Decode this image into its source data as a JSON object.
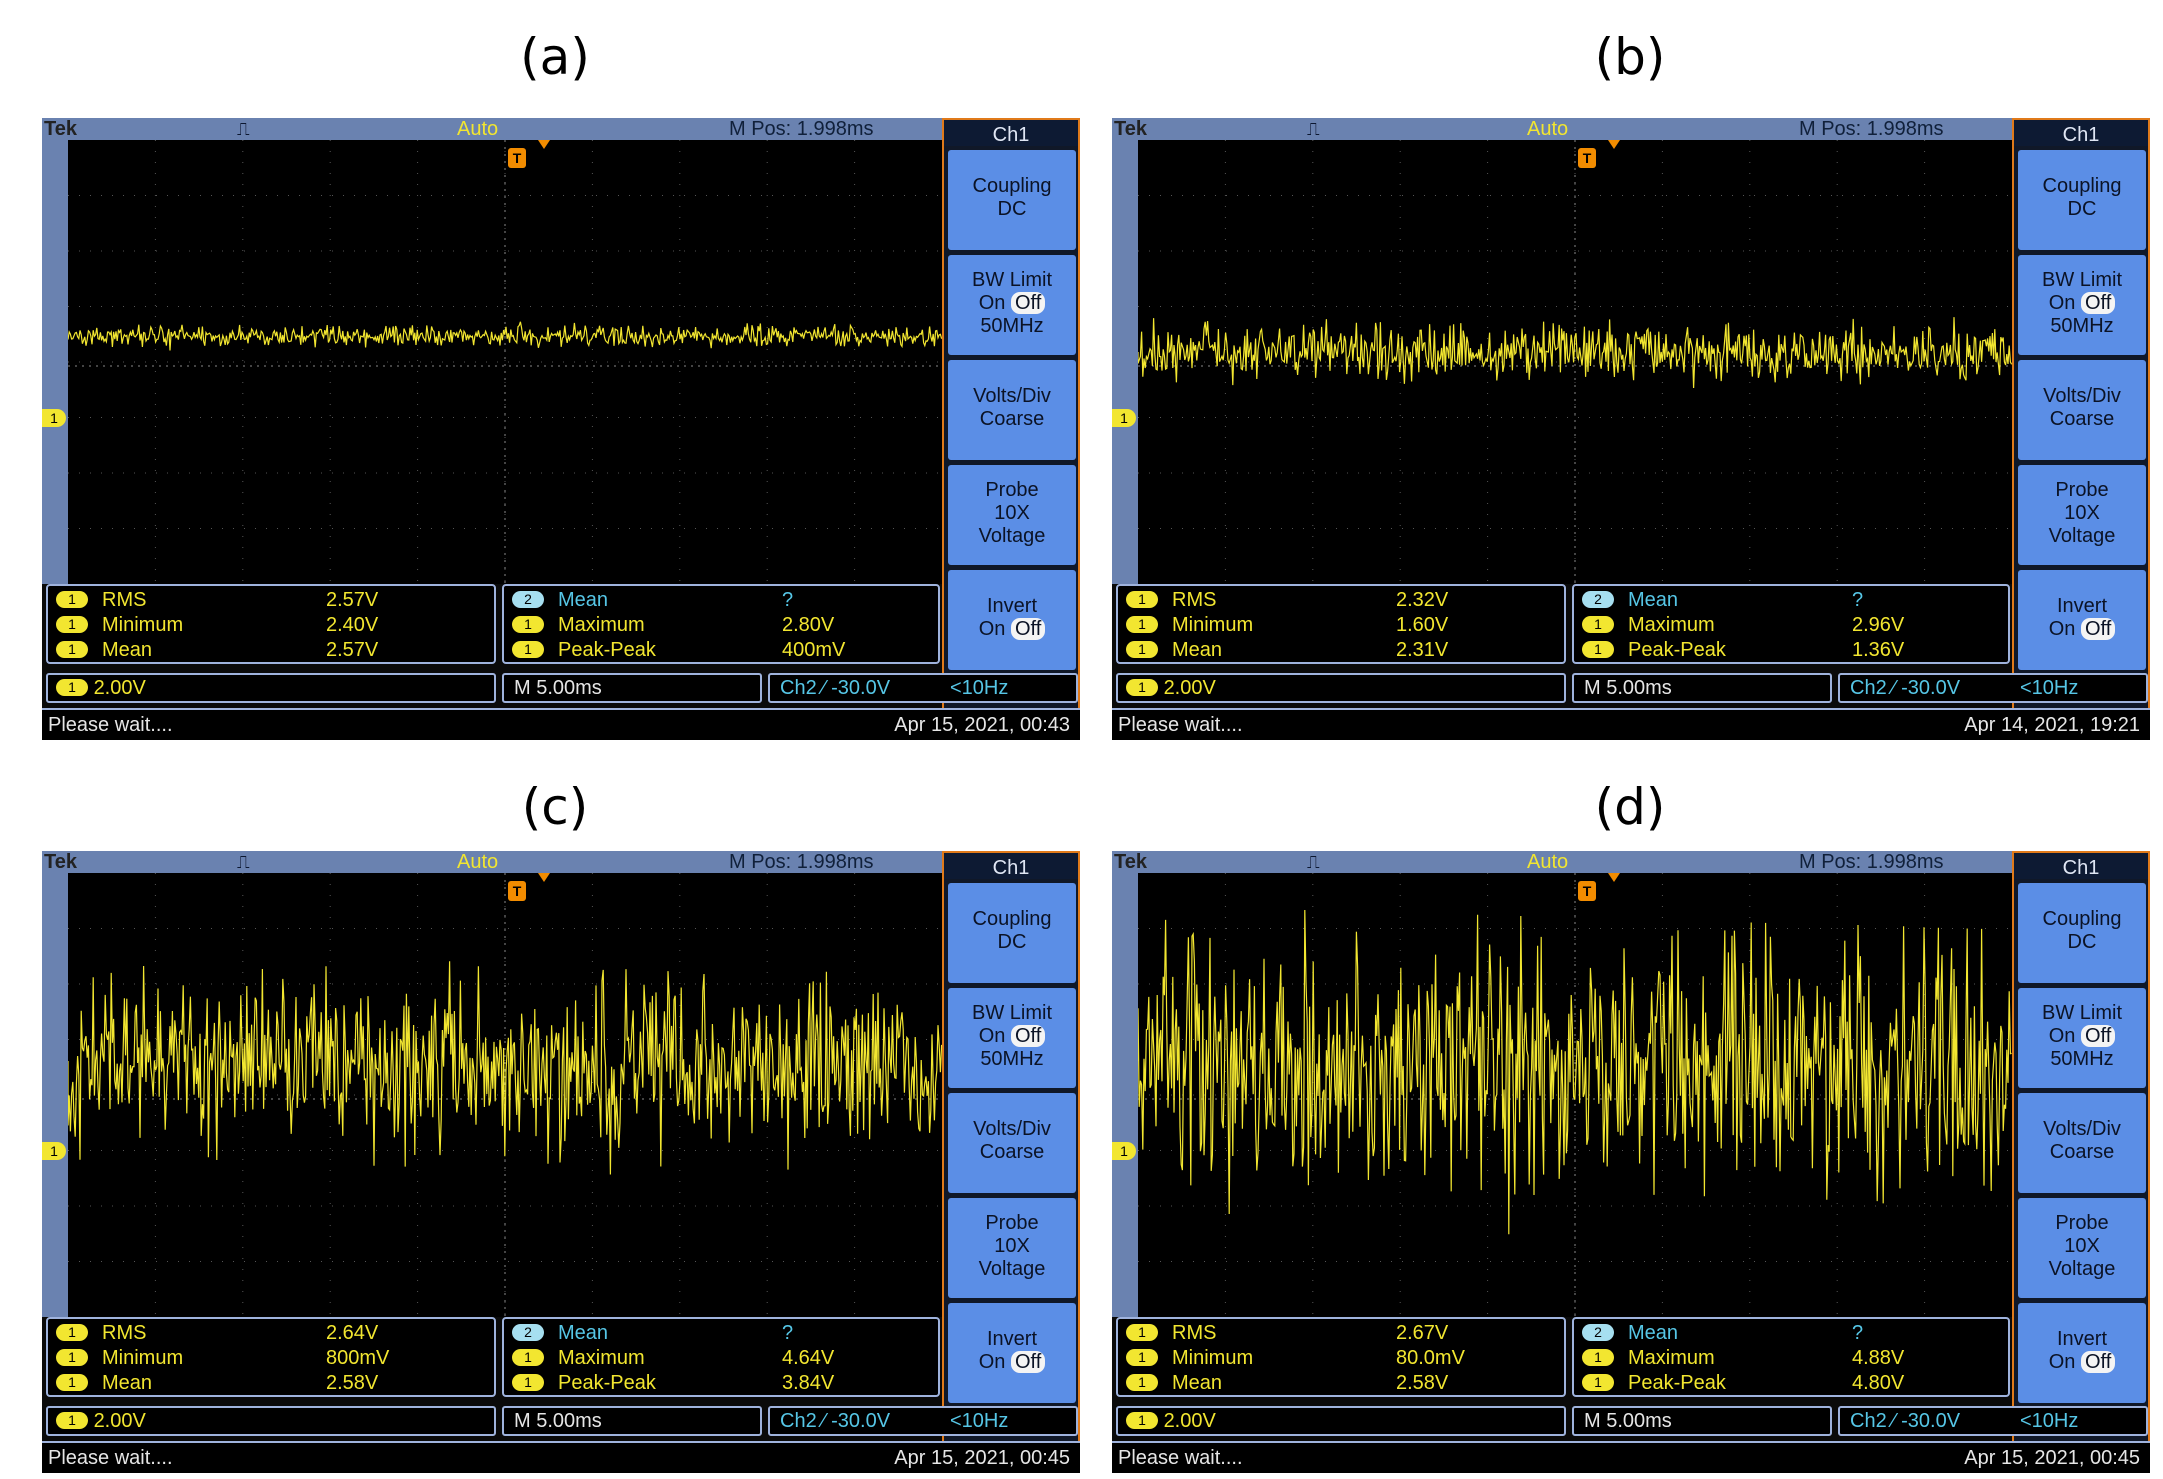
{
  "common": {
    "brand": "Tek",
    "acquire_glyph": "⎍",
    "trigger_mode": "Auto",
    "m_pos": "M Pos: 1.998ms",
    "trigger_marker": "T",
    "channel_marker": "1",
    "menu": {
      "title": "Ch1",
      "coupling": [
        "Coupling",
        "DC"
      ],
      "bw_limit": [
        "BW Limit",
        "On",
        "Off",
        "50MHz"
      ],
      "volts_div": [
        "Volts/Div",
        "Coarse"
      ],
      "probe": [
        "Probe",
        "10X",
        "Voltage"
      ],
      "invert": [
        "Invert",
        "On",
        "Off"
      ]
    },
    "meas_labels": {
      "rms": "RMS",
      "minimum": "Minimum",
      "mean": "Mean",
      "mean2": "Mean",
      "maximum": "Maximum",
      "peak_peak": "Peak-Peak"
    },
    "ch1_badge": "1",
    "ch2_badge": "2",
    "ch2_mean_value": "?",
    "volts": "2.00V",
    "timebase": "M 5.00ms",
    "trigger_readout": "Ch2 ⁄ -30.0V",
    "freq": "<10Hz",
    "status": "Please wait....",
    "colors": {
      "trace": "#f2e630",
      "ch2": "#56c6e6",
      "menu_button": "#5b8ee6",
      "frame": "#6a82b0",
      "menu_border": "#e07a1a"
    }
  },
  "panels": [
    {
      "label": "(a)",
      "rms": "2.57V",
      "minimum": "2.40V",
      "mean": "2.57V",
      "maximum": "2.80V",
      "peak_peak": "400mV",
      "datetime": "Apr 15, 2021, 00:43"
    },
    {
      "label": "(b)",
      "rms": "2.32V",
      "minimum": "1.60V",
      "mean": "2.31V",
      "maximum": "2.96V",
      "peak_peak": "1.36V",
      "datetime": "Apr 14, 2021, 19:21"
    },
    {
      "label": "(c)",
      "rms": "2.64V",
      "minimum": "800mV",
      "mean": "2.58V",
      "maximum": "4.64V",
      "peak_peak": "3.84V",
      "datetime": "Apr 15, 2021, 00:45"
    },
    {
      "label": "(d)",
      "rms": "2.67V",
      "minimum": "80.0mV",
      "mean": "2.58V",
      "maximum": "4.88V",
      "peak_peak": "4.80V",
      "datetime": "Apr 15, 2021, 00:45"
    }
  ]
}
